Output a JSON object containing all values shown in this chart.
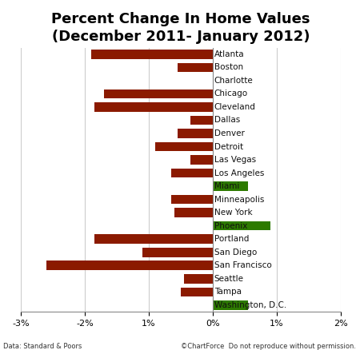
{
  "title": "Percent Change In Home Values\n(December 2011- January 2012)",
  "cities": [
    "Atlanta",
    "Boston",
    "Charlotte",
    "Chicago",
    "Cleveland",
    "Dallas",
    "Denver",
    "Detroit",
    "Las Vegas",
    "Los Angeles",
    "Miami",
    "Minneapolis",
    "New York",
    "Phoenix",
    "Portland",
    "San Diego",
    "San Francisco",
    "Seattle",
    "Tampa",
    "Washington, D.C."
  ],
  "values": [
    -1.9,
    -0.55,
    0.0,
    -1.7,
    -1.85,
    -0.35,
    -0.55,
    -0.9,
    -0.35,
    -0.65,
    0.55,
    -0.65,
    -0.6,
    0.9,
    -1.85,
    -1.1,
    -2.6,
    -0.45,
    -0.5,
    0.55
  ],
  "bar_color_dark_red": "#8B1A00",
  "bar_color_green": "#2D7A00",
  "positive_cities": [
    "Miami",
    "Phoenix",
    "Washington, D.C."
  ],
  "xlim": [
    -3.0,
    2.0
  ],
  "background_color": "#FFFFFF",
  "grid_color": "#CCCCCC",
  "title_fontsize": 13,
  "footer_left": "Data: Standard & Poors",
  "footer_right": "©ChartForce  Do not reproduce without permission."
}
